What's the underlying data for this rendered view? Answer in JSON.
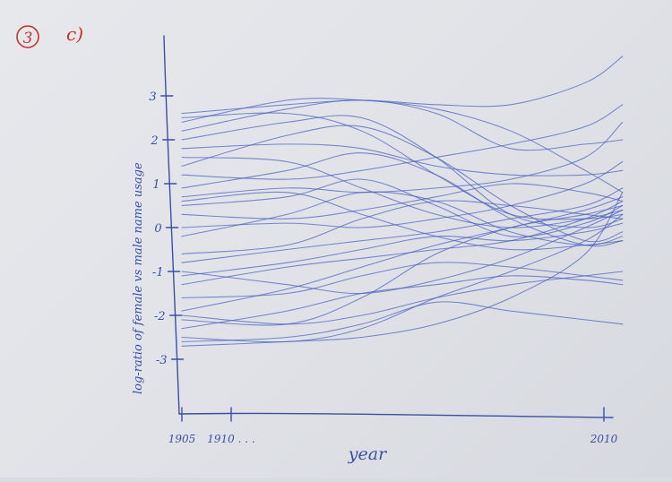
{
  "header": {
    "problem_number": "3",
    "part": "c)"
  },
  "chart_data": {
    "type": "line",
    "title": "",
    "xlabel": "year",
    "ylabel": "log-ratio of female vs male name usage",
    "ylim": [
      -3.4,
      3.9
    ],
    "x_ticks": [
      {
        "label": "1905",
        "value": 1905
      },
      {
        "label": "1910 . . .",
        "value": 1910
      },
      {
        "label": "2010",
        "value": 2010
      }
    ],
    "y_ticks": [
      3,
      2,
      1,
      0,
      -1,
      -2,
      -3
    ],
    "y_tick_labels": [
      "3",
      "2",
      "1",
      "0",
      "-1",
      "-2",
      "-3"
    ],
    "x": [
      1905,
      1925,
      1945,
      1965,
      1985,
      2005,
      2015
    ],
    "series": [
      {
        "values": [
          2.6,
          2.8,
          2.9,
          2.8,
          2.8,
          3.3,
          3.9
        ]
      },
      {
        "values": [
          2.4,
          2.9,
          2.9,
          2.7,
          2.2,
          1.3,
          0.8
        ]
      },
      {
        "values": [
          2.2,
          2.7,
          2.9,
          2.6,
          1.8,
          1.9,
          2.0
        ]
      },
      {
        "values": [
          2.0,
          2.4,
          2.5,
          1.6,
          0.3,
          0.0,
          0.2
        ]
      },
      {
        "values": [
          1.8,
          1.9,
          1.8,
          1.4,
          1.2,
          1.2,
          1.3
        ]
      },
      {
        "values": [
          1.4,
          2.1,
          2.3,
          1.6,
          0.5,
          -0.3,
          -0.1
        ]
      },
      {
        "values": [
          1.2,
          1.1,
          1.3,
          1.6,
          1.9,
          2.3,
          2.8
        ]
      },
      {
        "values": [
          0.9,
          1.3,
          1.7,
          1.2,
          0.2,
          -0.4,
          -0.3
        ]
      },
      {
        "values": [
          0.7,
          0.9,
          0.8,
          0.9,
          1.1,
          1.6,
          2.4
        ]
      },
      {
        "values": [
          0.5,
          0.7,
          1.1,
          0.5,
          -0.2,
          0.1,
          0.5
        ]
      },
      {
        "values": [
          0.3,
          0.2,
          0.4,
          0.7,
          1.0,
          0.8,
          0.6
        ]
      },
      {
        "values": [
          0.0,
          0.1,
          0.0,
          0.2,
          0.5,
          1.0,
          1.5
        ]
      },
      {
        "values": [
          -0.2,
          0.3,
          0.8,
          0.6,
          -0.1,
          -0.4,
          -0.2
        ]
      },
      {
        "values": [
          -0.6,
          -0.4,
          0.2,
          0.6,
          0.5,
          0.3,
          0.2
        ]
      },
      {
        "values": [
          -0.8,
          -0.5,
          -0.3,
          -0.1,
          0.2,
          0.5,
          0.9
        ]
      },
      {
        "values": [
          -1.1,
          -0.8,
          -0.5,
          -0.2,
          -0.3,
          -0.1,
          0.1
        ]
      },
      {
        "values": [
          -1.3,
          -0.9,
          -0.7,
          -0.5,
          -0.3,
          0.2,
          0.6
        ]
      },
      {
        "values": [
          -1.6,
          -1.5,
          -1.1,
          -0.8,
          -0.9,
          -1.1,
          -1.2
        ]
      },
      {
        "values": [
          -1.9,
          -1.4,
          -0.9,
          -0.4,
          0.0,
          0.4,
          0.7
        ]
      },
      {
        "values": [
          -2.1,
          -2.2,
          -1.6,
          -0.6,
          0.0,
          0.3,
          0.5
        ]
      },
      {
        "values": [
          -2.3,
          -1.9,
          -1.5,
          -1.3,
          -1.1,
          -1.2,
          -1.3
        ]
      },
      {
        "values": [
          -2.5,
          -2.6,
          -2.3,
          -1.6,
          -1.0,
          -0.3,
          0.3
        ]
      },
      {
        "values": [
          -2.6,
          -2.5,
          -2.2,
          -1.7,
          -1.9,
          -2.1,
          -2.2
        ]
      },
      {
        "values": [
          -2.7,
          -2.6,
          -2.5,
          -2.2,
          -1.6,
          -0.6,
          0.8
        ]
      },
      {
        "values": [
          -2.0,
          -2.2,
          -2.0,
          -1.6,
          -1.3,
          -1.1,
          -1.0
        ]
      },
      {
        "values": [
          -1.0,
          -1.3,
          -1.5,
          -1.2,
          -0.7,
          0.0,
          0.4
        ]
      },
      {
        "values": [
          0.6,
          0.8,
          0.3,
          -0.2,
          -0.5,
          -0.4,
          -0.3
        ]
      },
      {
        "values": [
          1.6,
          1.5,
          0.9,
          0.3,
          0.0,
          0.2,
          0.4
        ]
      },
      {
        "values": [
          2.5,
          2.6,
          2.2,
          1.2,
          0.3,
          0.2,
          0.3
        ]
      }
    ]
  }
}
